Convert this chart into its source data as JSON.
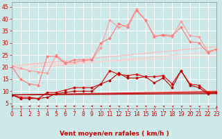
{
  "background_color": "#cce8e8",
  "grid_color": "#ffffff",
  "xlabel": "Vent moyen/en rafales ( km/h )",
  "xlabel_color": "#cc0000",
  "xlabel_fontsize": 6.5,
  "tick_color": "#cc0000",
  "tick_fontsize": 5.5,
  "ylim": [
    3,
    47
  ],
  "xlim": [
    0,
    23
  ],
  "yticks": [
    5,
    10,
    15,
    20,
    25,
    30,
    35,
    40,
    45
  ],
  "xticks": [
    0,
    1,
    2,
    3,
    4,
    5,
    6,
    7,
    8,
    9,
    10,
    11,
    12,
    13,
    14,
    15,
    16,
    17,
    18,
    19,
    20,
    21,
    22,
    23
  ],
  "lines": [
    {
      "x": [
        0,
        1,
        2,
        3,
        4,
        5,
        6,
        7,
        8,
        9,
        10,
        11,
        12,
        13,
        14,
        15,
        16,
        17,
        18,
        19,
        20,
        21,
        22,
        23
      ],
      "y": [
        20.5,
        19.5,
        18.5,
        18.0,
        17.5,
        25.0,
        22.0,
        22.0,
        22.5,
        23.0,
        28.0,
        39.5,
        36.5,
        37.5,
        44.0,
        39.5,
        33.0,
        33.0,
        32.5,
        39.0,
        33.0,
        32.5,
        26.5,
        27.5
      ],
      "color": "#ff9999",
      "lw": 0.8,
      "marker": "D",
      "ms": 1.5
    },
    {
      "x": [
        0,
        1,
        2,
        3,
        4,
        5,
        6,
        7,
        8,
        9,
        10,
        11,
        12,
        13,
        14,
        15,
        16,
        17,
        18,
        19,
        20,
        21,
        22,
        23
      ],
      "y": [
        20.5,
        15.0,
        13.0,
        12.5,
        24.5,
        24.5,
        21.5,
        23.0,
        23.0,
        23.0,
        30.0,
        32.0,
        38.0,
        36.5,
        43.5,
        39.5,
        32.5,
        33.5,
        33.0,
        36.5,
        30.5,
        30.0,
        26.0,
        27.5
      ],
      "color": "#ff7777",
      "lw": 0.8,
      "marker": "D",
      "ms": 1.5
    },
    {
      "x": [
        0,
        23
      ],
      "y": [
        20.5,
        28.5
      ],
      "color": "#ffbbbb",
      "lw": 0.9,
      "marker": null,
      "ms": 0
    },
    {
      "x": [
        0,
        23
      ],
      "y": [
        19.0,
        26.5
      ],
      "color": "#ffcccc",
      "lw": 0.9,
      "marker": null,
      "ms": 0
    },
    {
      "x": [
        0,
        23
      ],
      "y": [
        20.5,
        24.5
      ],
      "color": "#ffd5d5",
      "lw": 0.9,
      "marker": null,
      "ms": 0
    },
    {
      "x": [
        0,
        1,
        2,
        3,
        4,
        5,
        6,
        7,
        8,
        9,
        10,
        11,
        12,
        13,
        14,
        15,
        16,
        17,
        18,
        19,
        20,
        21,
        22,
        23
      ],
      "y": [
        8.5,
        7.5,
        7.5,
        7.0,
        9.5,
        9.5,
        10.5,
        11.5,
        11.5,
        11.5,
        13.0,
        18.5,
        17.0,
        16.5,
        17.0,
        16.0,
        16.0,
        16.5,
        13.0,
        18.5,
        13.0,
        12.5,
        9.5,
        9.5
      ],
      "color": "#dd0000",
      "lw": 0.8,
      "marker": "D",
      "ms": 1.5
    },
    {
      "x": [
        0,
        1,
        2,
        3,
        4,
        5,
        6,
        7,
        8,
        9,
        10,
        11,
        12,
        13,
        14,
        15,
        16,
        17,
        18,
        19,
        20,
        21,
        22,
        23
      ],
      "y": [
        8.5,
        7.0,
        7.0,
        7.0,
        7.5,
        9.0,
        9.5,
        10.0,
        10.0,
        10.0,
        13.0,
        14.5,
        17.5,
        15.5,
        15.5,
        16.0,
        13.5,
        15.5,
        11.5,
        18.5,
        12.5,
        11.5,
        9.0,
        9.5
      ],
      "color": "#bb0000",
      "lw": 0.8,
      "marker": "D",
      "ms": 1.5
    },
    {
      "x": [
        0,
        23
      ],
      "y": [
        8.5,
        10.0
      ],
      "color": "#ee3333",
      "lw": 0.9,
      "marker": null,
      "ms": 0
    },
    {
      "x": [
        0,
        23
      ],
      "y": [
        8.5,
        9.5
      ],
      "color": "#cc2222",
      "lw": 0.9,
      "marker": null,
      "ms": 0
    },
    {
      "x": [
        0,
        23
      ],
      "y": [
        8.5,
        9.0
      ],
      "color": "#aa1111",
      "lw": 0.9,
      "marker": null,
      "ms": 0
    }
  ],
  "wind_arrows": {
    "angles": [
      210,
      200,
      270,
      270,
      270,
      245,
      270,
      270,
      245,
      270,
      245,
      270,
      225,
      245,
      225,
      225,
      200,
      225,
      210,
      210,
      225,
      210,
      210,
      180
    ],
    "color": "#cc0000"
  }
}
